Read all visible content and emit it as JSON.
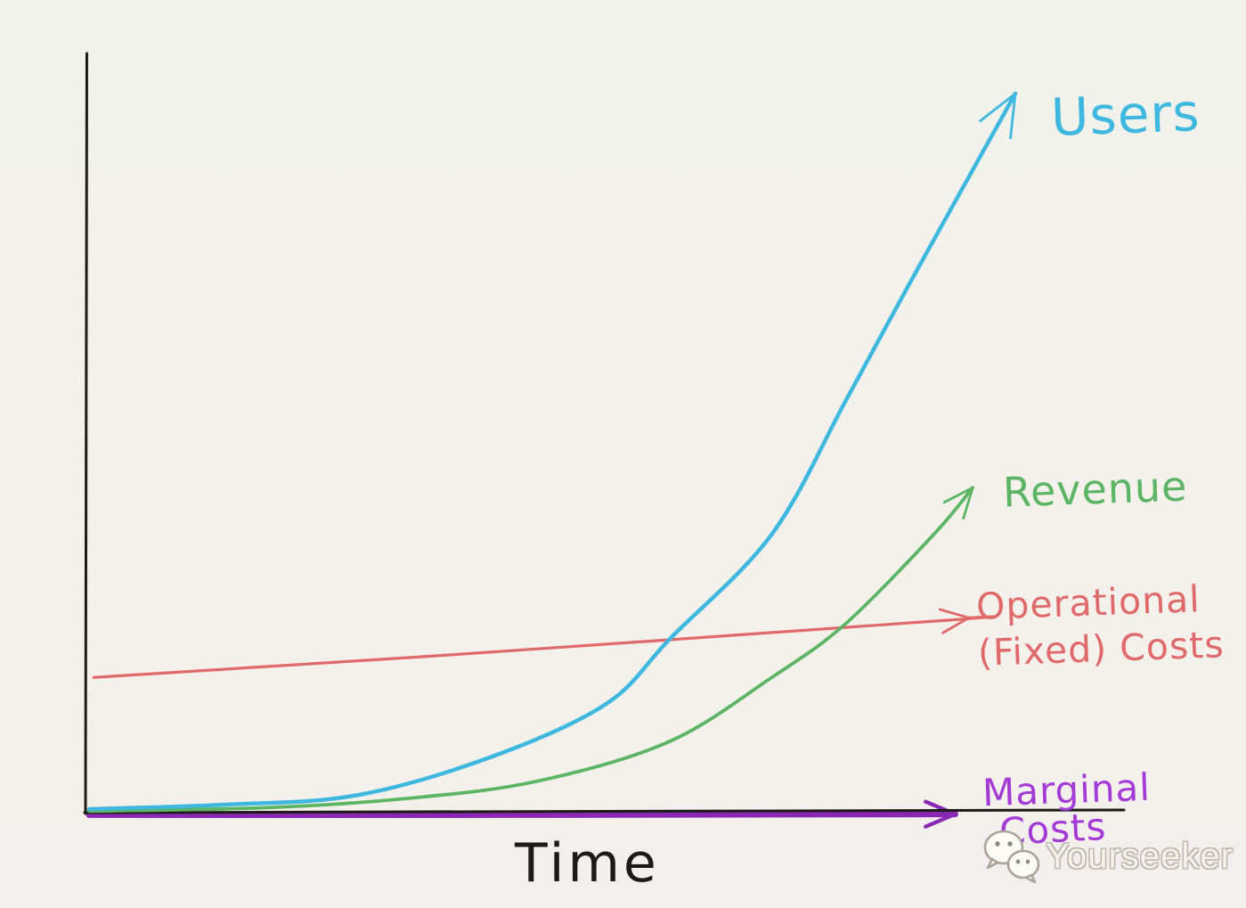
{
  "background": "#f2f1ec",
  "chart_data": {
    "type": "line",
    "style": "hand-drawn whiteboard sketch, no gridlines, no tick labels",
    "title": "",
    "xlabel": "Time",
    "ylabel": "",
    "axis_color": "#1d1b17",
    "x_range": [
      0,
      1
    ],
    "y_range": [
      0,
      1
    ],
    "legend_position": "labels written at end of each curve",
    "series": [
      {
        "name": "Users",
        "color": "#3fb8df",
        "label_color": "#3fb8df",
        "trend": "exponential growth, highest curve",
        "stroke_width": 4.5,
        "arrow": true,
        "arrow_len": 50,
        "points": [
          [
            0,
            0.005
          ],
          [
            0.144,
            0.011
          ],
          [
            0.288,
            0.024
          ],
          [
            0.433,
            0.077
          ],
          [
            0.558,
            0.151
          ],
          [
            0.628,
            0.243
          ],
          [
            0.737,
            0.387
          ],
          [
            0.817,
            0.573
          ],
          [
            0.885,
            0.734
          ],
          [
            1.0,
            1.0
          ]
        ]
      },
      {
        "name": "Revenue",
        "color": "#5bb563",
        "label_color": "#5bb563",
        "trend": "exponential growth, lags Users",
        "stroke_width": 3.8,
        "arrow": true,
        "arrow_len": 36,
        "points": [
          [
            0,
            0.002
          ],
          [
            0.192,
            0.007
          ],
          [
            0.337,
            0.019
          ],
          [
            0.481,
            0.043
          ],
          [
            0.625,
            0.098
          ],
          [
            0.737,
            0.188
          ],
          [
            0.817,
            0.263
          ],
          [
            0.912,
            0.387
          ],
          [
            0.954,
            0.452
          ]
        ]
      },
      {
        "name": "Operational (Fixed) Costs",
        "color": "#e06a6a",
        "label_color": "#e06a6a",
        "trend": "nearly flat, slowly rising; crossed by Users then Revenue",
        "stroke_width": 3.2,
        "arrow": true,
        "arrow_len": 34,
        "points": [
          [
            0.005,
            0.188
          ],
          [
            0.385,
            0.219
          ],
          [
            0.931,
            0.268
          ],
          [
            0.95,
            0.271
          ]
        ]
      },
      {
        "name": "Marginal Costs",
        "color": "#8a28b4",
        "label_color": "#a43bd6",
        "trend": "flat at approximately zero, drawn along x-axis",
        "stroke_width": 7,
        "arrow": true,
        "arrow_len": 36,
        "points": [
          [
            0,
            -0.003
          ],
          [
            0.442,
            -0.003
          ],
          [
            0.935,
            -0.002
          ]
        ]
      }
    ]
  },
  "labels": {
    "users": "Users",
    "revenue": "Revenue",
    "operational_line1": "Operational",
    "operational_line2": "(Fixed) Costs",
    "marginal_line1": "Marginal",
    "marginal_line2": "Costs",
    "time": "Time"
  },
  "watermark": {
    "text": "Yourseeker",
    "icon": "wechat-chat-bubbles-icon"
  }
}
